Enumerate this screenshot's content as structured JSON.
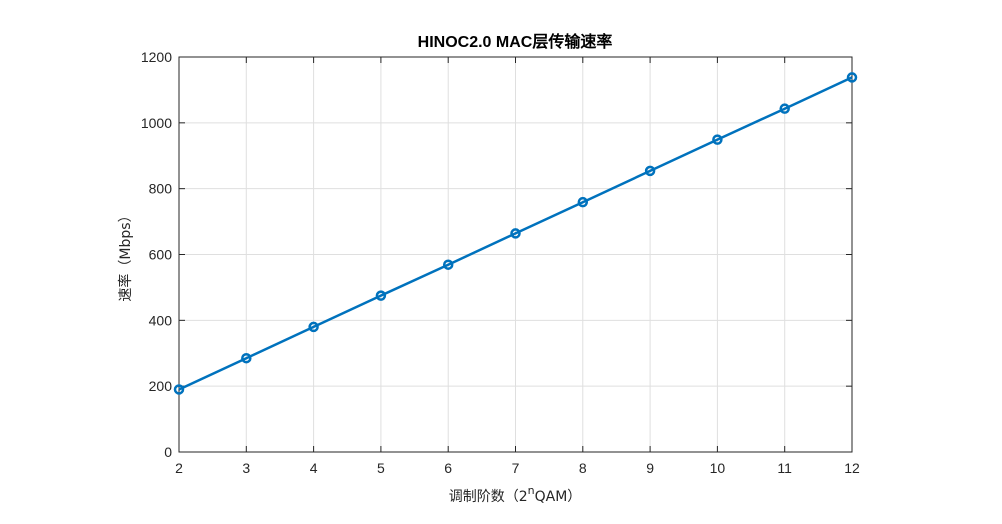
{
  "chart_data": {
    "type": "line",
    "title": "HINOC2.0 MAC层传输速率",
    "xlabel_prefix": "调制阶数（2",
    "xlabel_sup": "n",
    "xlabel_suffix": "QAM）",
    "ylabel": "速率（Mbps）",
    "xlim": [
      2,
      12
    ],
    "ylim": [
      0,
      1200
    ],
    "x_ticks": [
      2,
      3,
      4,
      5,
      6,
      7,
      8,
      9,
      10,
      11,
      12
    ],
    "y_ticks": [
      0,
      200,
      400,
      600,
      800,
      1000,
      1200
    ],
    "grid": true,
    "line_color": "#0072BD",
    "series": [
      {
        "x": [
          2,
          3,
          4,
          5,
          6,
          7,
          8,
          9,
          10,
          11,
          12
        ],
        "values": [
          190,
          285,
          380,
          475,
          569,
          664,
          759,
          854,
          949,
          1043,
          1138
        ],
        "marker": "circle"
      }
    ]
  }
}
